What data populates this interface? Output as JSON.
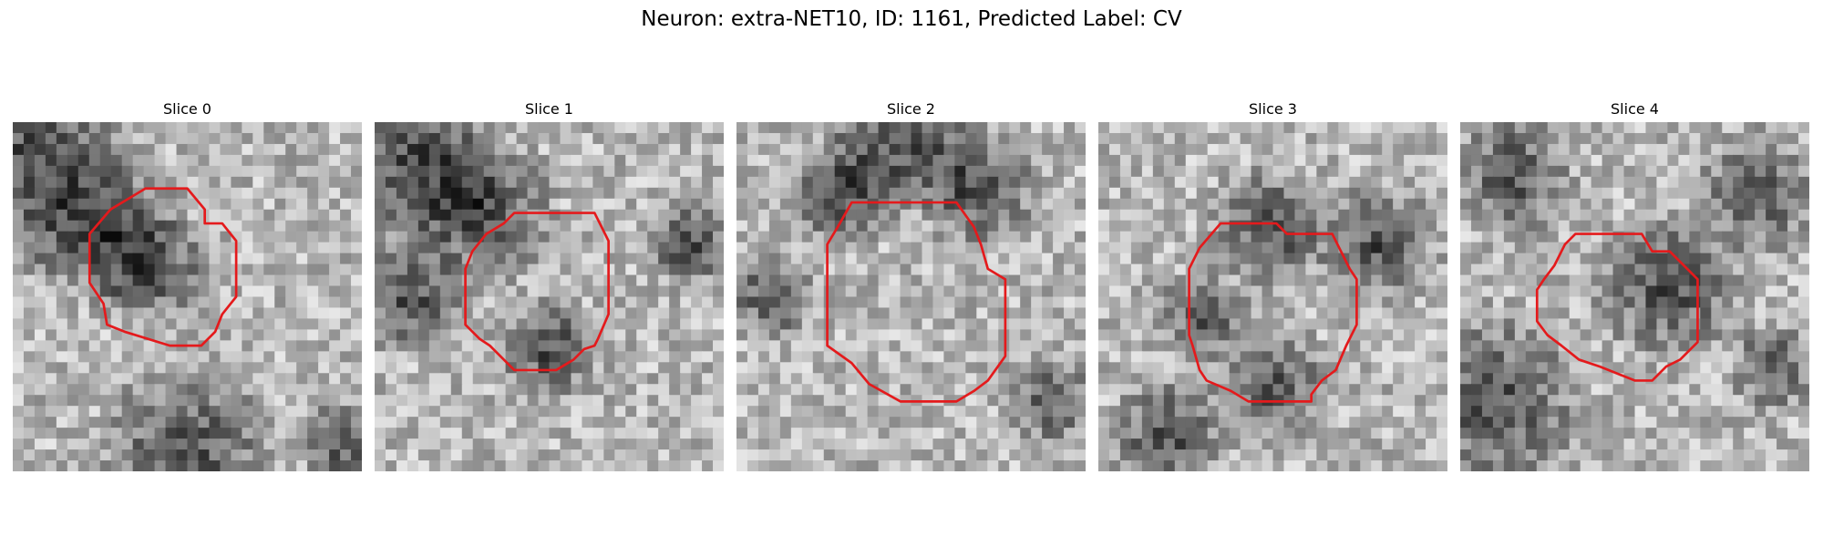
{
  "figure": {
    "title": "Neuron: extra-NET10, ID: 1161, Predicted Label: CV"
  },
  "contour_color": "#e41a1c",
  "colormap": "gray",
  "panels": [
    {
      "title": "Slice 0",
      "seed": 11,
      "dark_spots": [
        [
          0.05,
          0.1,
          0.35
        ],
        [
          0.25,
          0.3,
          0.25
        ],
        [
          0.4,
          0.42,
          0.2
        ],
        [
          0.95,
          0.92,
          0.15
        ],
        [
          0.5,
          0.95,
          0.3
        ]
      ],
      "contour": [
        [
          0.38,
          0.19
        ],
        [
          0.5,
          0.19
        ],
        [
          0.55,
          0.25
        ],
        [
          0.55,
          0.29
        ],
        [
          0.6,
          0.29
        ],
        [
          0.64,
          0.34
        ],
        [
          0.64,
          0.5
        ],
        [
          0.6,
          0.55
        ],
        [
          0.58,
          0.6
        ],
        [
          0.54,
          0.64
        ],
        [
          0.45,
          0.64
        ],
        [
          0.32,
          0.6
        ],
        [
          0.27,
          0.58
        ],
        [
          0.26,
          0.52
        ],
        [
          0.22,
          0.46
        ],
        [
          0.22,
          0.32
        ],
        [
          0.28,
          0.25
        ]
      ]
    },
    {
      "title": "Slice 1",
      "seed": 23,
      "dark_spots": [
        [
          0.1,
          0.1,
          0.3
        ],
        [
          0.3,
          0.25,
          0.25
        ],
        [
          0.9,
          0.35,
          0.15
        ],
        [
          0.5,
          0.65,
          0.18
        ],
        [
          0.1,
          0.5,
          0.2
        ]
      ],
      "contour": [
        [
          0.4,
          0.26
        ],
        [
          0.63,
          0.26
        ],
        [
          0.65,
          0.3
        ],
        [
          0.67,
          0.34
        ],
        [
          0.67,
          0.55
        ],
        [
          0.64,
          0.62
        ],
        [
          0.63,
          0.64
        ],
        [
          0.6,
          0.65
        ],
        [
          0.57,
          0.68
        ],
        [
          0.52,
          0.71
        ],
        [
          0.4,
          0.71
        ],
        [
          0.33,
          0.64
        ],
        [
          0.3,
          0.62
        ],
        [
          0.26,
          0.58
        ],
        [
          0.26,
          0.42
        ],
        [
          0.28,
          0.37
        ],
        [
          0.32,
          0.32
        ],
        [
          0.37,
          0.29
        ]
      ]
    },
    {
      "title": "Slice 2",
      "seed": 37,
      "dark_spots": [
        [
          0.5,
          0.05,
          0.25
        ],
        [
          0.3,
          0.2,
          0.2
        ],
        [
          0.7,
          0.2,
          0.2
        ],
        [
          0.1,
          0.5,
          0.15
        ],
        [
          0.9,
          0.8,
          0.15
        ]
      ],
      "contour": [
        [
          0.33,
          0.23
        ],
        [
          0.63,
          0.23
        ],
        [
          0.68,
          0.3
        ],
        [
          0.7,
          0.35
        ],
        [
          0.72,
          0.42
        ],
        [
          0.77,
          0.45
        ],
        [
          0.77,
          0.67
        ],
        [
          0.72,
          0.74
        ],
        [
          0.68,
          0.77
        ],
        [
          0.63,
          0.8
        ],
        [
          0.47,
          0.8
        ],
        [
          0.38,
          0.75
        ],
        [
          0.33,
          0.69
        ],
        [
          0.26,
          0.64
        ],
        [
          0.26,
          0.35
        ],
        [
          0.29,
          0.3
        ]
      ]
    },
    {
      "title": "Slice 3",
      "seed": 51,
      "dark_spots": [
        [
          0.5,
          0.3,
          0.2
        ],
        [
          0.3,
          0.55,
          0.15
        ],
        [
          0.5,
          0.75,
          0.2
        ],
        [
          0.8,
          0.35,
          0.2
        ],
        [
          0.2,
          0.9,
          0.2
        ]
      ],
      "contour": [
        [
          0.35,
          0.29
        ],
        [
          0.51,
          0.29
        ],
        [
          0.54,
          0.32
        ],
        [
          0.67,
          0.32
        ],
        [
          0.72,
          0.42
        ],
        [
          0.74,
          0.45
        ],
        [
          0.74,
          0.58
        ],
        [
          0.71,
          0.64
        ],
        [
          0.68,
          0.71
        ],
        [
          0.64,
          0.74
        ],
        [
          0.61,
          0.78
        ],
        [
          0.61,
          0.8
        ],
        [
          0.43,
          0.8
        ],
        [
          0.38,
          0.77
        ],
        [
          0.31,
          0.74
        ],
        [
          0.29,
          0.71
        ],
        [
          0.27,
          0.64
        ],
        [
          0.26,
          0.61
        ],
        [
          0.26,
          0.42
        ],
        [
          0.29,
          0.36
        ]
      ]
    },
    {
      "title": "Slice 4",
      "seed": 67,
      "dark_spots": [
        [
          0.6,
          0.47,
          0.25
        ],
        [
          0.1,
          0.8,
          0.3
        ],
        [
          0.15,
          0.15,
          0.2
        ],
        [
          0.85,
          0.2,
          0.2
        ],
        [
          0.9,
          0.7,
          0.15
        ]
      ],
      "contour": [
        [
          0.33,
          0.32
        ],
        [
          0.52,
          0.32
        ],
        [
          0.55,
          0.37
        ],
        [
          0.6,
          0.37
        ],
        [
          0.65,
          0.42
        ],
        [
          0.68,
          0.45
        ],
        [
          0.68,
          0.63
        ],
        [
          0.63,
          0.68
        ],
        [
          0.59,
          0.7
        ],
        [
          0.55,
          0.74
        ],
        [
          0.5,
          0.74
        ],
        [
          0.45,
          0.72
        ],
        [
          0.4,
          0.7
        ],
        [
          0.34,
          0.68
        ],
        [
          0.29,
          0.64
        ],
        [
          0.25,
          0.61
        ],
        [
          0.22,
          0.57
        ],
        [
          0.22,
          0.48
        ],
        [
          0.24,
          0.45
        ],
        [
          0.27,
          0.41
        ],
        [
          0.3,
          0.35
        ]
      ]
    }
  ]
}
